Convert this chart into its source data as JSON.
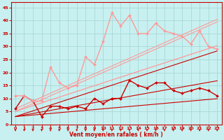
{
  "xlabel": "Vent moyen/en rafales ( km/h )",
  "xlim": [
    -0.5,
    23.5
  ],
  "ylim": [
    0,
    47
  ],
  "yticks": [
    0,
    5,
    10,
    15,
    20,
    25,
    30,
    35,
    40,
    45
  ],
  "xticks": [
    0,
    1,
    2,
    3,
    4,
    5,
    6,
    7,
    8,
    9,
    10,
    11,
    12,
    13,
    14,
    15,
    16,
    17,
    18,
    19,
    20,
    21,
    22,
    23
  ],
  "background_color": "#c8f0f0",
  "grid_color": "#a8d8d8",
  "series": [
    {
      "y": [
        6,
        11,
        9,
        3,
        7,
        7,
        6,
        7,
        6,
        10,
        8,
        10,
        10,
        17,
        15,
        14,
        16,
        16,
        13,
        12,
        13,
        14,
        13,
        11
      ],
      "color": "#cc0000",
      "marker": "D",
      "markersize": 2.0,
      "linewidth": 1.0,
      "zorder": 5
    },
    {
      "y": [
        3,
        3.3,
        3.6,
        3.9,
        4.2,
        4.5,
        4.8,
        5.1,
        5.4,
        5.7,
        6.0,
        6.3,
        6.6,
        6.9,
        7.2,
        7.5,
        7.8,
        8.1,
        8.4,
        8.7,
        9.0,
        9.3,
        9.6,
        9.9
      ],
      "color": "#cc0000",
      "marker": null,
      "linewidth": 0.8,
      "zorder": 3
    },
    {
      "y": [
        3,
        3.6,
        4.2,
        4.8,
        5.4,
        6.0,
        6.6,
        7.2,
        7.8,
        8.4,
        9.0,
        9.6,
        10.2,
        10.8,
        11.4,
        12.0,
        12.6,
        13.2,
        13.8,
        14.4,
        15.0,
        15.6,
        16.2,
        16.8
      ],
      "color": "#cc0000",
      "marker": null,
      "linewidth": 0.8,
      "zorder": 3
    },
    {
      "y": [
        3,
        4.1,
        5.2,
        6.3,
        7.4,
        8.5,
        9.6,
        10.7,
        11.8,
        12.9,
        14.0,
        15.1,
        16.2,
        17.3,
        18.4,
        19.5,
        20.6,
        21.7,
        22.8,
        23.9,
        25.0,
        26.1,
        27.2,
        28.3
      ],
      "color": "#cc0000",
      "marker": null,
      "linewidth": 0.8,
      "zorder": 3
    },
    {
      "y": [
        11,
        11,
        9,
        9,
        22,
        16,
        14,
        15,
        26,
        23,
        32,
        43,
        38,
        42,
        35,
        35,
        39,
        36,
        35,
        34,
        31,
        36,
        30,
        29
      ],
      "color": "#ff9999",
      "marker": "D",
      "markersize": 2.0,
      "linewidth": 1.0,
      "zorder": 5
    },
    {
      "y": [
        5,
        6.1,
        7.2,
        8.3,
        9.4,
        10.5,
        11.6,
        12.7,
        13.8,
        14.9,
        16.0,
        17.1,
        18.2,
        19.3,
        20.4,
        21.5,
        22.6,
        23.7,
        24.8,
        25.9,
        27.0,
        28.1,
        29.2,
        30.3
      ],
      "color": "#ff9999",
      "marker": null,
      "linewidth": 0.9,
      "zorder": 3
    },
    {
      "y": [
        5,
        6.5,
        8.0,
        9.5,
        11.0,
        12.5,
        14.0,
        15.5,
        17.0,
        18.5,
        20.0,
        21.5,
        23.0,
        24.5,
        26.0,
        27.5,
        29.0,
        30.5,
        32.0,
        33.5,
        35.0,
        36.5,
        38.0,
        39.5
      ],
      "color": "#ff9999",
      "marker": null,
      "linewidth": 0.8,
      "zorder": 3
    },
    {
      "y": [
        6,
        7.5,
        9.0,
        10.5,
        12.0,
        13.5,
        15.0,
        16.5,
        18.0,
        19.5,
        21.0,
        22.5,
        24.0,
        25.5,
        27.0,
        28.5,
        30.0,
        31.5,
        33.0,
        34.5,
        36.0,
        37.5,
        39.0,
        40.5
      ],
      "color": "#ff9999",
      "marker": null,
      "linewidth": 0.8,
      "zorder": 3
    }
  ],
  "tick_color": "#cc0000",
  "label_color": "#cc0000",
  "axis_color": "#cc0000"
}
